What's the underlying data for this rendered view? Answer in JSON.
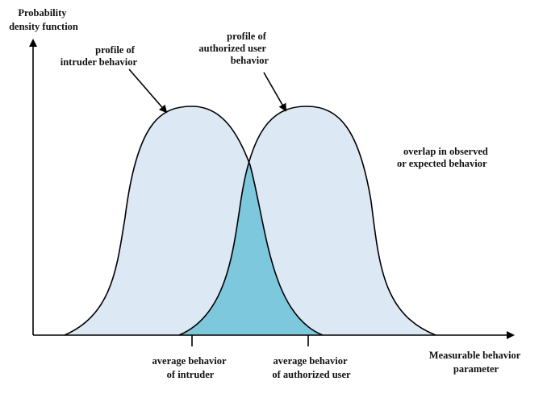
{
  "y_axis_label": [
    "Probability",
    "density function"
  ],
  "x_axis_label": [
    "Measurable behavior",
    "parameter"
  ],
  "intruder_profile_label": [
    "profile of",
    "intruder behavior"
  ],
  "authorized_profile_label": [
    "profile of",
    "authorized user",
    "behavior"
  ],
  "overlap_label": [
    "overlap in observed",
    "or expected behavior"
  ],
  "intruder_average_label": [
    "average behavior",
    "of intruder"
  ],
  "authorized_average_label": [
    "average behavior",
    "of authorized user"
  ],
  "colors": {
    "curve_fill": "#dce9f5",
    "overlap_fill": "#7ec8de",
    "stroke": "#000000"
  }
}
